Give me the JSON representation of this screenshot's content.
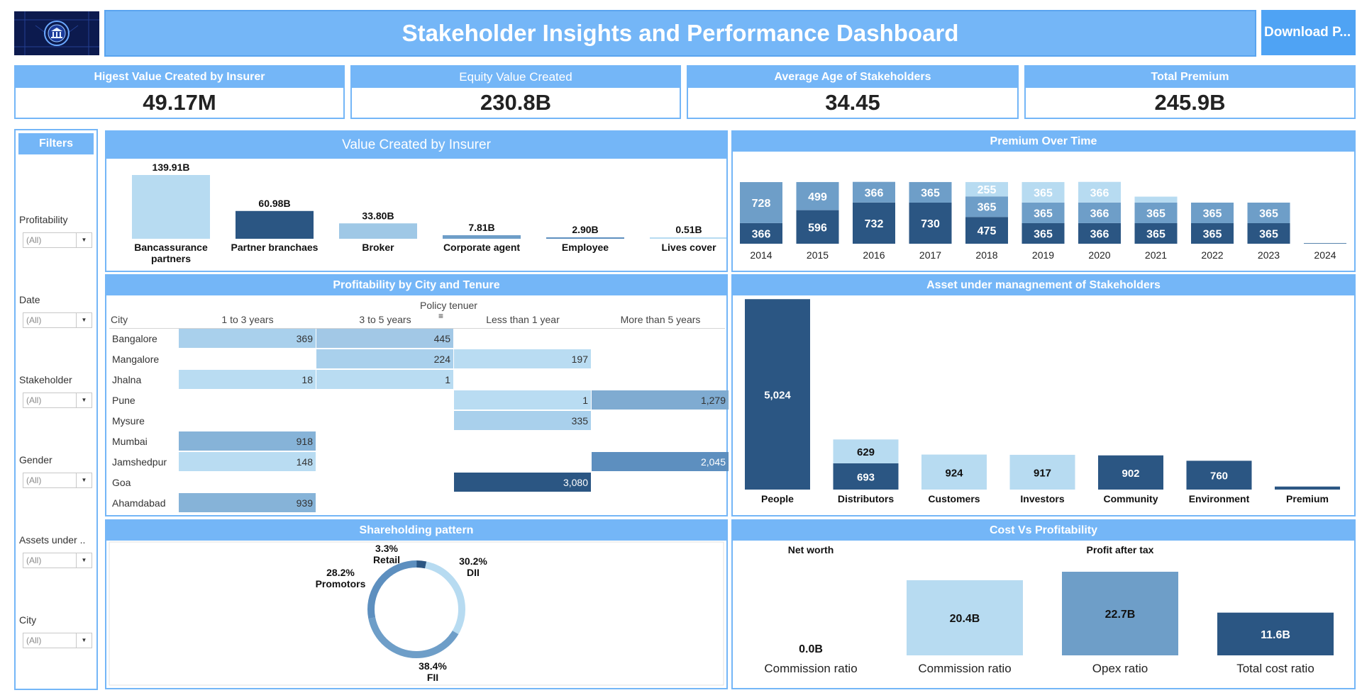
{
  "header": {
    "title": "Stakeholder Insights and Performance Dashboard",
    "download_label": "Download P..."
  },
  "kpis": [
    {
      "label": "Higest Value Created by Insurer",
      "value": "49.17M"
    },
    {
      "label": "Equity Value Created",
      "value": "230.8B"
    },
    {
      "label": "Average Age of Stakeholders",
      "value": "34.45"
    },
    {
      "label": "Total Premium",
      "value": "245.9B"
    }
  ],
  "filters": {
    "title": "Filters",
    "items": [
      {
        "label": "Profitability",
        "value": "(All)"
      },
      {
        "label": "Date",
        "value": "(All)"
      },
      {
        "label": "Stakeholder",
        "value": "(All)"
      },
      {
        "label": "Gender",
        "value": "(All)"
      },
      {
        "label": "Assets under ..",
        "value": "(All)"
      },
      {
        "label": "City",
        "value": "(All)"
      }
    ]
  },
  "colors": {
    "accent": "#74b6f7",
    "light": "#b7dbf1",
    "mid_light": "#9fc8e6",
    "mid": "#6e9ec8",
    "mid_dark": "#5d8fbf",
    "dark": "#2b5683"
  },
  "panels": {
    "value_created": "Value Created by Insurer",
    "premium_over_time": "Premium Over Time",
    "profitability": "Profitability by City and Tenure",
    "aum": "Asset under managnement of Stakeholders",
    "shareholding": "Shareholding pattern",
    "cost_vs_profit": "Cost Vs Profitability"
  },
  "chart_data": [
    {
      "id": "value_created",
      "type": "bar",
      "title": "Value Created by Insurer",
      "categories": [
        "Bancassurance partners",
        "Partner branchaes",
        "Broker",
        "Corporate agent",
        "Employee",
        "Lives cover"
      ],
      "values": [
        139.91,
        60.98,
        33.8,
        7.81,
        2.9,
        0.51
      ],
      "labels": [
        "139.91B",
        "60.98B",
        "33.80B",
        "7.81B",
        "2.90B",
        "0.51B"
      ],
      "colors": [
        "#b7dbf1",
        "#2b5683",
        "#9fc8e6",
        "#6e9ec8",
        "#5d8fbf",
        "#b7dbf1"
      ]
    },
    {
      "id": "premium_over_time",
      "type": "bar",
      "stacked": true,
      "title": "Premium Over Time",
      "categories": [
        "2014",
        "2015",
        "2016",
        "2017",
        "2018",
        "2019",
        "2020",
        "2021",
        "2022",
        "2023",
        "2024"
      ],
      "series": [
        {
          "values": [
            366,
            596,
            732,
            730,
            475,
            365,
            366,
            365,
            365,
            365,
            6
          ],
          "color": "#2b5683"
        },
        {
          "values": [
            728,
            499,
            366,
            365,
            365,
            365,
            366,
            365,
            365,
            365,
            6
          ],
          "color": "#6e9ec8"
        },
        {
          "values": [
            0,
            0,
            0,
            0,
            255,
            365,
            366,
            106,
            0,
            0,
            0
          ],
          "color": "#b7dbf1"
        }
      ],
      "labels": [
        [
          "366",
          "596",
          "732",
          "730",
          "475",
          "365",
          "366",
          "365",
          "365",
          "365",
          ""
        ],
        [
          "728",
          "499",
          "366",
          "365",
          "365",
          "365",
          "366",
          "365",
          "365",
          "365",
          ""
        ],
        [
          "",
          "",
          "",
          "",
          "255",
          "365",
          "366",
          "",
          "",
          "",
          ""
        ]
      ]
    },
    {
      "id": "profitability",
      "type": "heatmap",
      "title": "Profitability by City and Tenure",
      "column_group": "Policy tenuer",
      "row_header": "City",
      "columns": [
        "1 to 3 years",
        "3 to 5 years",
        "Less than 1 year",
        "More than 5 years"
      ],
      "rows": [
        "Bangalore",
        "Mangalore",
        "Jhalna",
        "Pune",
        "Mysure",
        "Mumbai",
        "Jamshedpur",
        "Goa",
        "Ahamdabad"
      ],
      "values": [
        [
          369,
          445,
          null,
          null
        ],
        [
          null,
          224,
          197,
          null
        ],
        [
          18,
          1,
          null,
          null
        ],
        [
          null,
          null,
          1,
          1279
        ],
        [
          null,
          null,
          335,
          null
        ],
        [
          918,
          null,
          null,
          null
        ],
        [
          148,
          null,
          null,
          2045
        ],
        [
          null,
          null,
          3080,
          null
        ],
        [
          939,
          null,
          null,
          null
        ]
      ],
      "labels": [
        [
          "369",
          "445",
          "",
          ""
        ],
        [
          "",
          "224",
          "197",
          ""
        ],
        [
          "18",
          "1",
          "",
          ""
        ],
        [
          "",
          "",
          "1",
          "1,279"
        ],
        [
          "",
          "",
          "335",
          ""
        ],
        [
          "918",
          "",
          "",
          ""
        ],
        [
          "148",
          "",
          "",
          "2,045"
        ],
        [
          "",
          "",
          "3,080",
          ""
        ],
        [
          "939",
          "",
          "",
          ""
        ]
      ]
    },
    {
      "id": "aum",
      "type": "bar",
      "stacked": true,
      "title": "Asset under managnement of Stakeholders",
      "categories": [
        "People",
        "Distributors",
        "Customers",
        "Investors",
        "Community",
        "Environment",
        "Premium"
      ],
      "series": [
        {
          "values": [
            5024,
            693,
            924,
            917,
            902,
            760,
            80
          ],
          "colors": [
            "#2b5683",
            "#2b5683",
            "#b7dbf1",
            "#b7dbf1",
            "#2b5683",
            "#2b5683",
            "#2b5683"
          ]
        },
        {
          "values": [
            0,
            629,
            0,
            0,
            0,
            0,
            0
          ],
          "colors": [
            "#b7dbf1",
            "#b7dbf1",
            "#b7dbf1",
            "#b7dbf1",
            "#b7dbf1",
            "#b7dbf1",
            "#b7dbf1"
          ]
        }
      ],
      "labels": [
        [
          "5,024",
          "693",
          "924",
          "917",
          "902",
          "760",
          ""
        ],
        [
          "",
          "629",
          "",
          "",
          "",
          "",
          ""
        ]
      ]
    },
    {
      "id": "shareholding",
      "type": "pie",
      "donut": true,
      "title": "Shareholding pattern",
      "slices": [
        {
          "name": "Retail",
          "pct": 3.3,
          "label": "3.3%",
          "color": "#2b5683"
        },
        {
          "name": "DII",
          "pct": 30.2,
          "label": "30.2%",
          "color": "#b7dbf1"
        },
        {
          "name": "FII",
          "pct": 38.4,
          "label": "38.4%",
          "color": "#6e9ec8"
        },
        {
          "name": "Promotors",
          "pct": 28.2,
          "label": "28.2%",
          "color": "#5d8fbf"
        }
      ]
    },
    {
      "id": "cost_vs_profit",
      "type": "bar",
      "title": "Cost Vs Profitability",
      "groups": [
        {
          "header": "Net worth",
          "categories": [
            "Commission ratio"
          ],
          "values": [
            0.0
          ],
          "labels": [
            "0.0B"
          ],
          "colors": [
            "#b7dbf1"
          ]
        },
        {
          "header": "Profit after tax",
          "categories": [
            "Commission ratio",
            "Opex ratio",
            "Total cost ratio"
          ],
          "values": [
            20.4,
            22.7,
            11.6
          ],
          "labels": [
            "20.4B",
            "22.7B",
            "11.6B"
          ],
          "colors": [
            "#b7dbf1",
            "#6e9ec8",
            "#2b5683"
          ]
        }
      ]
    }
  ]
}
